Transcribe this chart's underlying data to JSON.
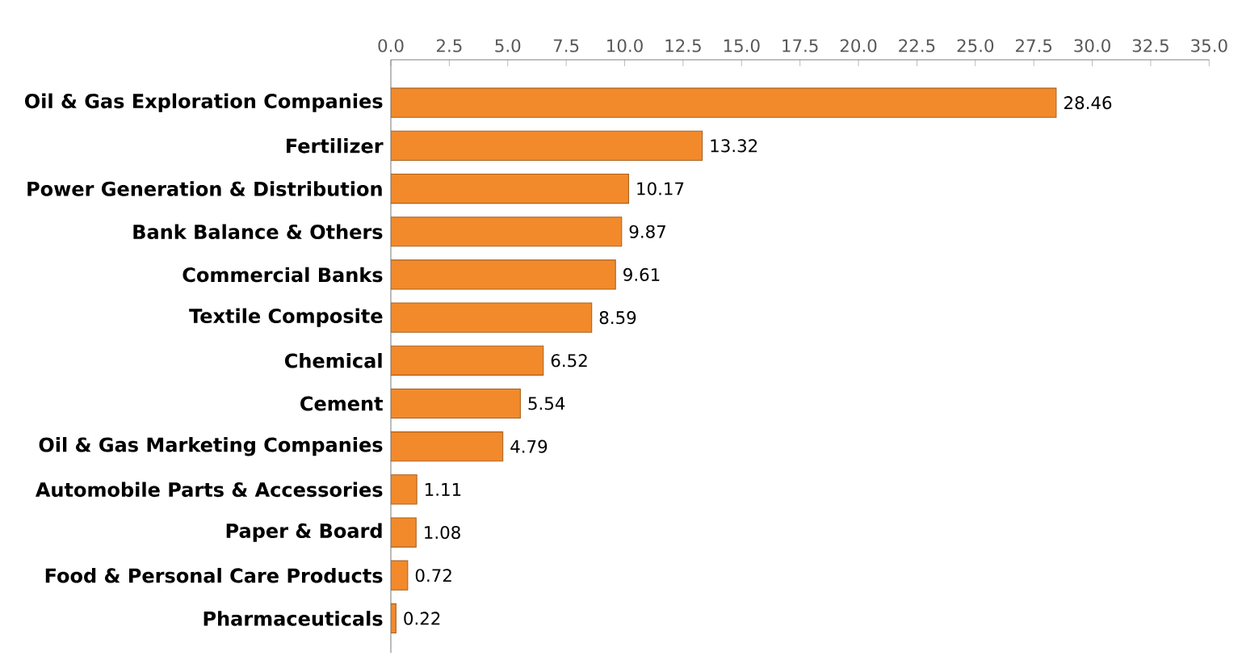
{
  "chart_data": {
    "type": "bar",
    "orientation": "horizontal",
    "categories": [
      "Oil & Gas Exploration Companies",
      "Fertilizer",
      "Power Generation & Distribution",
      "Bank Balance & Others",
      "Commercial Banks",
      "Textile Composite",
      "Chemical",
      "Cement",
      "Oil & Gas Marketing Companies",
      "Automobile Parts & Accessories",
      "Paper & Board",
      "Food & Personal Care Products",
      "Pharmaceuticals"
    ],
    "values": [
      28.46,
      13.32,
      10.17,
      9.87,
      9.61,
      8.59,
      6.52,
      5.54,
      4.79,
      1.11,
      1.08,
      0.72,
      0.22
    ],
    "color": "#f28a2c",
    "data_labels": true,
    "grid": false,
    "xlim": [
      0,
      35
    ],
    "xticks": [
      {
        "value": 0,
        "label": "0.0"
      },
      {
        "value": 2.5,
        "label": "2.5"
      },
      {
        "value": 5,
        "label": "5.0"
      },
      {
        "value": 7.5,
        "label": "7.5"
      },
      {
        "value": 10,
        "label": "10.0"
      },
      {
        "value": 12.5,
        "label": "12.5"
      },
      {
        "value": 15,
        "label": "15.0"
      },
      {
        "value": 17.5,
        "label": "17.5"
      },
      {
        "value": 20,
        "label": "20.0"
      },
      {
        "value": 22.5,
        "label": "22.5"
      },
      {
        "value": 25,
        "label": "25.0"
      },
      {
        "value": 27.5,
        "label": "27.5"
      },
      {
        "value": 30,
        "label": "30.0"
      },
      {
        "value": 32.5,
        "label": "32.5"
      },
      {
        "value": 35,
        "label": "35.0"
      }
    ]
  }
}
